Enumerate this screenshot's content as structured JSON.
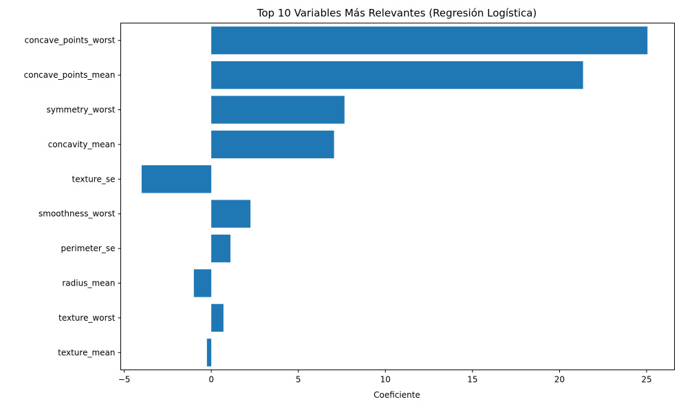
{
  "chart_data": {
    "type": "bar",
    "orientation": "horizontal",
    "title": "Top 10 Variables Más Relevantes (Regresión Logística)",
    "xlabel": "Coeficiente",
    "ylabel": "",
    "xlim": [
      -5.2,
      26.6
    ],
    "xticks": [
      -5,
      0,
      5,
      10,
      15,
      20,
      25
    ],
    "categories": [
      "concave_points_worst",
      "concave_points_mean",
      "symmetry_worst",
      "concavity_mean",
      "texture_se",
      "smoothness_worst",
      "perimeter_se",
      "radius_mean",
      "texture_worst",
      "texture_mean"
    ],
    "values": [
      25.05,
      21.35,
      7.65,
      7.05,
      -4.0,
      2.25,
      1.1,
      -1.0,
      0.7,
      -0.25
    ],
    "bar_color": "#1f77b4",
    "grid": false,
    "legend": "none"
  }
}
